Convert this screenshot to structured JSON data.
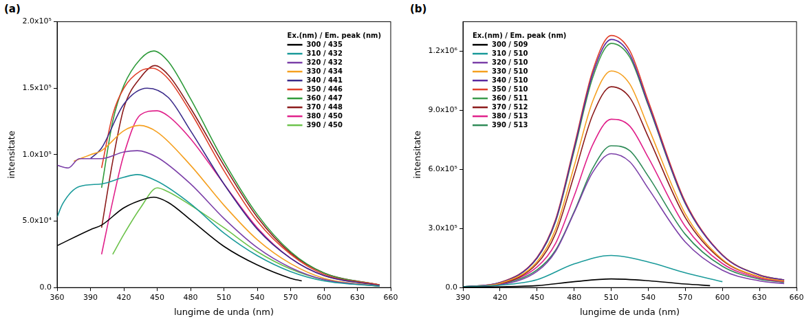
{
  "chart_data": [
    {
      "type": "line",
      "panel_label": "(a)",
      "x_label": "lungime de unda (nm)",
      "y_label": "intensitate",
      "legend_title": "Ex.(nm) / Em. peak (nm)",
      "legend": "upper right",
      "grid": false,
      "xlim": [
        360,
        660
      ],
      "xticks": [
        360,
        390,
        420,
        450,
        480,
        510,
        540,
        570,
        600,
        630,
        660
      ],
      "ylim": [
        0,
        200000
      ],
      "yticks": [
        {
          "value": 0,
          "label": "0.0"
        },
        {
          "value": 50000,
          "label": "5.0x10⁴"
        },
        {
          "value": 100000,
          "label": "1.0x10⁵"
        },
        {
          "value": 150000,
          "label": "1.5x10⁵"
        },
        {
          "value": 200000,
          "label": "2.0x10⁵"
        }
      ],
      "series": [
        {
          "name": "300 / 435",
          "color": "#000000",
          "x": [
            360,
            390,
            400,
            420,
            440,
            447,
            460,
            480,
            510,
            540,
            570,
            580
          ],
          "values": [
            31500,
            43600,
            47000,
            60000,
            67000,
            68000,
            64000,
            51000,
            31000,
            17000,
            7000,
            5000
          ]
        },
        {
          "name": "310 / 432",
          "color": "#1a9a9a",
          "x": [
            360,
            365,
            380,
            400,
            420,
            432,
            450,
            480,
            510,
            540,
            570,
            600,
            650
          ],
          "values": [
            53000,
            63000,
            76000,
            78000,
            83000,
            85000,
            80000,
            63000,
            41000,
            24000,
            12000,
            5000,
            1000
          ]
        },
        {
          "name": "320 / 432",
          "color": "#7b3fa8",
          "x": [
            360,
            370,
            380,
            400,
            420,
            432,
            450,
            480,
            510,
            540,
            570,
            600,
            650
          ],
          "values": [
            92000,
            90000,
            97000,
            97000,
            102000,
            103000,
            98000,
            78000,
            52000,
            30000,
            15000,
            6000,
            1000
          ]
        },
        {
          "name": "330 / 434",
          "color": "#f5a020",
          "x": [
            375,
            390,
            400,
            420,
            434,
            450,
            480,
            510,
            540,
            570,
            600,
            650
          ],
          "values": [
            95000,
            100000,
            103000,
            118000,
            122000,
            117000,
            92000,
            62000,
            36000,
            18000,
            7000,
            1000
          ]
        },
        {
          "name": "340 / 441",
          "color": "#3a2a8a",
          "x": [
            390,
            400,
            420,
            441,
            460,
            480,
            510,
            540,
            570,
            600,
            650
          ],
          "values": [
            97000,
            105000,
            138000,
            150000,
            143000,
            118000,
            78000,
            44000,
            22000,
            9000,
            1500
          ]
        },
        {
          "name": "350 / 446",
          "color": "#e0402a",
          "x": [
            400,
            410,
            420,
            435,
            446,
            460,
            480,
            510,
            540,
            570,
            600,
            650
          ],
          "values": [
            90000,
            130000,
            150000,
            163000,
            165000,
            157000,
            132000,
            88000,
            50000,
            25000,
            10000,
            2000
          ]
        },
        {
          "name": "360 / 447",
          "color": "#2e9a3a",
          "x": [
            400,
            410,
            420,
            435,
            447,
            460,
            480,
            510,
            540,
            570,
            600,
            650
          ],
          "values": [
            75000,
            125000,
            152000,
            172000,
            178000,
            170000,
            142000,
            95000,
            55000,
            27000,
            11000,
            2000
          ]
        },
        {
          "name": "370 / 448",
          "color": "#8b1a1a",
          "x": [
            400,
            410,
            420,
            435,
            448,
            460,
            480,
            510,
            540,
            570,
            600,
            650
          ],
          "values": [
            45000,
            95000,
            135000,
            158000,
            167000,
            160000,
            135000,
            92000,
            53000,
            26000,
            11000,
            2000
          ]
        },
        {
          "name": "380 / 450",
          "color": "#e0208a",
          "x": [
            400,
            410,
            420,
            435,
            450,
            460,
            480,
            510,
            540,
            570,
            600,
            650
          ],
          "values": [
            25000,
            65000,
            100000,
            130000,
            133000,
            129000,
            112000,
            78000,
            45000,
            22000,
            9000,
            2000
          ]
        },
        {
          "name": "390 / 450",
          "color": "#6cc24a",
          "x": [
            410,
            420,
            435,
            450,
            460,
            480,
            510,
            540,
            570,
            600,
            650
          ],
          "values": [
            25000,
            40000,
            60000,
            75000,
            72000,
            62000,
            45000,
            27000,
            14000,
            6000,
            1000
          ]
        }
      ]
    },
    {
      "type": "line",
      "panel_label": "(b)",
      "x_label": "lungime de unda (nm)",
      "y_label": "intensitate",
      "legend_title": "Ex.(nm) / Em. peak (nm)",
      "legend": "upper left",
      "grid": false,
      "xlim": [
        390,
        660
      ],
      "xticks": [
        390,
        420,
        450,
        480,
        510,
        540,
        570,
        600,
        630,
        660
      ],
      "ylim": [
        0,
        1350000
      ],
      "yticks": [
        {
          "value": 0,
          "label": "0.0"
        },
        {
          "value": 300000,
          "label": "3.0x10⁵"
        },
        {
          "value": 600000,
          "label": "6.0x10⁵"
        },
        {
          "value": 900000,
          "label": "9.0x10⁵"
        },
        {
          "value": 1200000,
          "label": "1.2x10⁶"
        }
      ],
      "series": [
        {
          "name": "300 / 509",
          "color": "#000000",
          "x": [
            390,
            420,
            450,
            480,
            510,
            540,
            570,
            590
          ],
          "values": [
            2000,
            4000,
            10000,
            30000,
            44000,
            35000,
            18000,
            10000
          ]
        },
        {
          "name": "310 / 510",
          "color": "#1a9a9a",
          "x": [
            390,
            420,
            450,
            480,
            510,
            540,
            570,
            600
          ],
          "values": [
            5000,
            12000,
            40000,
            120000,
            163000,
            130000,
            75000,
            30000
          ]
        },
        {
          "name": "320 / 510",
          "color": "#7b3fa8",
          "x": [
            390,
            420,
            450,
            465,
            480,
            495,
            510,
            525,
            540,
            570,
            600,
            630,
            650
          ],
          "values": [
            2000,
            14000,
            82000,
            184000,
            381000,
            585000,
            680000,
            639000,
            503000,
            231000,
            88000,
            34000,
            20000
          ]
        },
        {
          "name": "330 / 510",
          "color": "#f5a020",
          "x": [
            390,
            420,
            450,
            465,
            480,
            495,
            510,
            525,
            540,
            570,
            600,
            630,
            650
          ],
          "values": [
            3000,
            22000,
            132000,
            297000,
            616000,
            946000,
            1100000,
            1034000,
            814000,
            374000,
            143000,
            55000,
            33000
          ]
        },
        {
          "name": "340 / 510",
          "color": "#5a2aa0",
          "x": [
            390,
            420,
            450,
            465,
            480,
            495,
            510,
            525,
            540,
            570,
            600,
            630,
            650
          ],
          "values": [
            4000,
            25000,
            151000,
            340000,
            706000,
            1084000,
            1260000,
            1184000,
            932000,
            428000,
            164000,
            63000,
            38000
          ]
        },
        {
          "name": "350 / 510",
          "color": "#e0402a",
          "x": [
            390,
            420,
            450,
            465,
            480,
            495,
            510,
            525,
            540,
            570,
            600,
            630,
            650
          ],
          "values": [
            4000,
            26000,
            154000,
            346000,
            717000,
            1101000,
            1280000,
            1203000,
            947000,
            435000,
            166000,
            64000,
            38000
          ]
        },
        {
          "name": "360 / 511",
          "color": "#3a9a4a",
          "x": [
            390,
            420,
            450,
            465,
            480,
            495,
            510,
            525,
            540,
            570,
            600,
            630,
            650
          ],
          "values": [
            4000,
            25000,
            149000,
            335000,
            694000,
            1066000,
            1240000,
            1170000,
            925000,
            425000,
            165000,
            64000,
            38000
          ]
        },
        {
          "name": "370 / 512",
          "color": "#8b1a1a",
          "x": [
            390,
            420,
            450,
            465,
            480,
            495,
            510,
            525,
            540,
            570,
            600,
            630,
            650
          ],
          "values": [
            3000,
            20000,
            122000,
            275000,
            571000,
            877000,
            1020000,
            965000,
            765000,
            355000,
            138000,
            54000,
            33000
          ]
        },
        {
          "name": "380 / 513",
          "color": "#e0208a",
          "x": [
            400,
            420,
            450,
            465,
            480,
            495,
            510,
            525,
            540,
            570,
            600,
            630,
            650
          ],
          "values": [
            5000,
            18000,
            105000,
            225000,
            465000,
            725000,
            855000,
            820000,
            660000,
            310000,
            122000,
            48000,
            30000
          ]
        },
        {
          "name": "390 / 513",
          "color": "#2e8b57",
          "x": [
            410,
            420,
            450,
            465,
            480,
            495,
            510,
            525,
            540,
            570,
            600,
            630,
            650
          ],
          "values": [
            8000,
            15000,
            90000,
            190000,
            385000,
            605000,
            720000,
            695000,
            565000,
            270000,
            108000,
            43000,
            27000
          ]
        }
      ]
    }
  ]
}
